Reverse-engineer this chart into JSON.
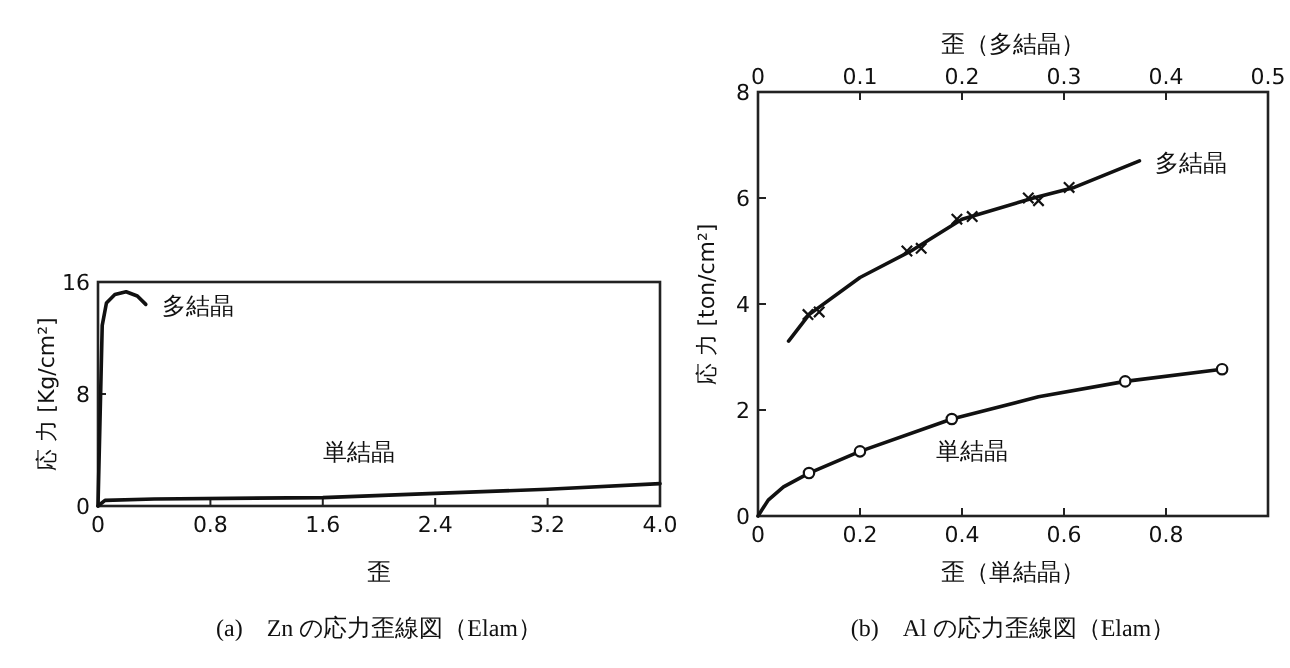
{
  "chart_data": [
    {
      "type": "line",
      "title": "(a)　Zn の応力歪線図（Elam）",
      "xlabel": "歪",
      "ylabel": "応 力 [Kg/cm²]",
      "xlim": [
        0,
        4
      ],
      "xticks": [
        0,
        0.8,
        1.6,
        2.4,
        3.2,
        {
          "value": 4,
          "label": "4.0"
        }
      ],
      "ylim": [
        0,
        16
      ],
      "yticks": [
        0,
        8,
        16
      ],
      "grid": false,
      "series": [
        {
          "name": "多結晶",
          "type": "line",
          "color": "#111111",
          "marker": "none",
          "x": [
            0,
            0.03,
            0.06,
            0.12,
            0.2,
            0.28,
            0.34
          ],
          "values": [
            0,
            12.9,
            14.5,
            15.1,
            15.3,
            15.0,
            14.4
          ]
        },
        {
          "name": "単結晶",
          "type": "line",
          "color": "#111111",
          "marker": "none",
          "x": [
            0,
            0.05,
            0.4,
            1.6,
            2.4,
            3.2,
            4.0
          ],
          "values": [
            0,
            0.4,
            0.5,
            0.6,
            0.9,
            1.2,
            1.6
          ]
        }
      ]
    },
    {
      "type": "line",
      "title": "(b)　Al の応力歪線図（Elam）",
      "xlabel": "歪（単結晶）",
      "x2label": "歪（多結晶）",
      "ylabel": "応 力 [ton/cm²]",
      "xlim": [
        0,
        1.0
      ],
      "xticks": [
        0,
        0.2,
        0.4,
        0.6,
        0.8
      ],
      "x2lim": [
        0,
        0.5
      ],
      "x2ticks": [
        0,
        0.1,
        0.2,
        0.3,
        0.4,
        0.5
      ],
      "ylim": [
        0,
        8
      ],
      "yticks": [
        0,
        2,
        4,
        6,
        8
      ],
      "grid": false,
      "series": [
        {
          "name": "多結晶",
          "type": "line",
          "axis": "x2",
          "color": "#111111",
          "marker": "none",
          "x": [
            0.03,
            0.05,
            0.1,
            0.15,
            0.2,
            0.27,
            0.31,
            0.374
          ],
          "values": [
            3.3,
            3.8,
            4.5,
            5.0,
            5.6,
            6.0,
            6.2,
            6.7
          ]
        },
        {
          "type": "scatter",
          "axis": "x2",
          "color": "#111111",
          "marker": "cross",
          "x": [
            0.049,
            0.06,
            0.146,
            0.16,
            0.195,
            0.21,
            0.265,
            0.275,
            0.305
          ],
          "values": [
            3.8,
            3.85,
            5.0,
            5.05,
            5.6,
            5.65,
            6.0,
            5.95,
            6.2
          ]
        },
        {
          "name": "単結晶",
          "type": "line",
          "color": "#111111",
          "marker": "none",
          "x": [
            0,
            0.02,
            0.05,
            0.1,
            0.2,
            0.38,
            0.55,
            0.72,
            0.91
          ],
          "values": [
            0,
            0.3,
            0.55,
            0.81,
            1.22,
            1.83,
            2.25,
            2.54,
            2.77
          ]
        },
        {
          "type": "scatter",
          "color": "#111111",
          "marker": "circle",
          "x": [
            0.1,
            0.2,
            0.38,
            0.72,
            0.91
          ],
          "values": [
            0.81,
            1.22,
            1.83,
            2.54,
            2.77
          ]
        }
      ]
    }
  ]
}
